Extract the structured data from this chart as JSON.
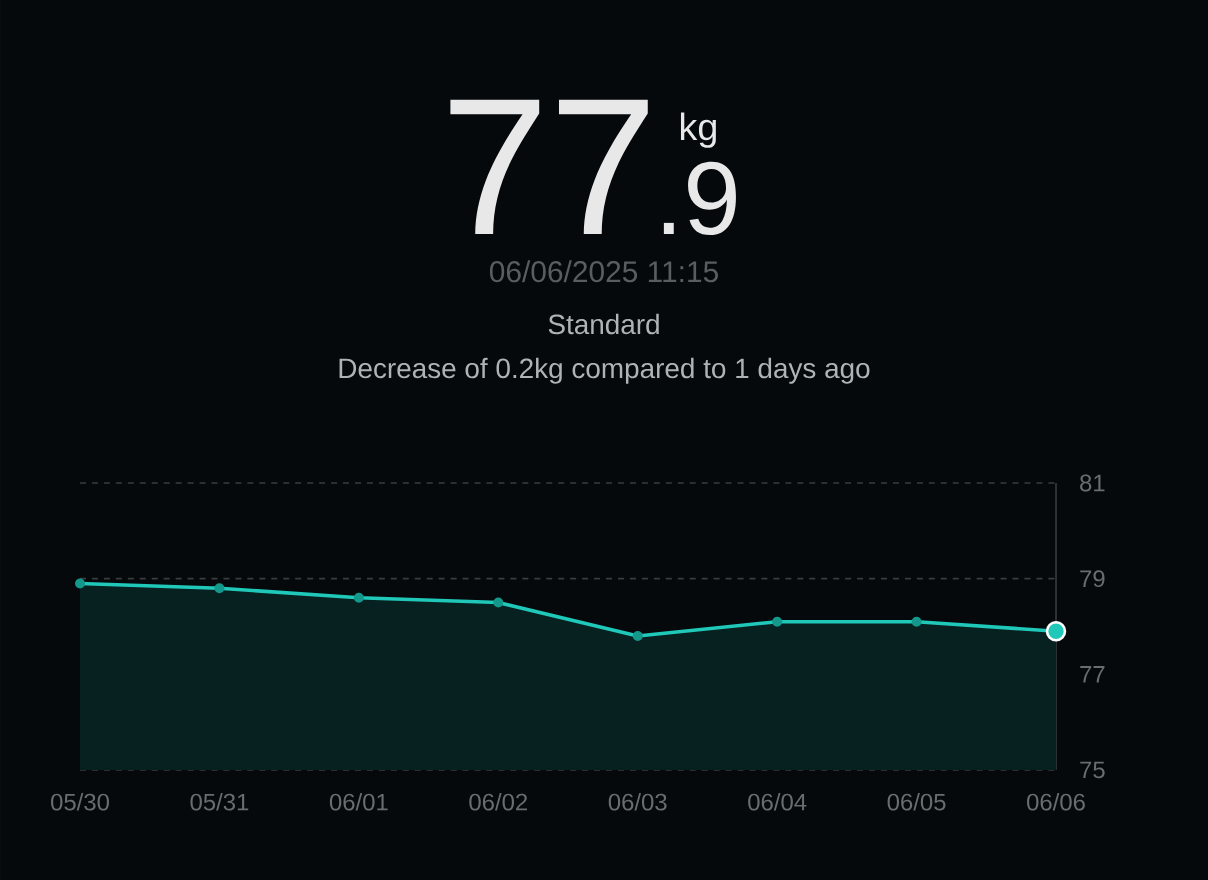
{
  "chart_data": {
    "type": "area",
    "title": "77",
    "annotations": [
      ".9",
      "kg",
      "06/06/2025 11:15",
      "Standard",
      "Decrease of 0.2kg compared to 1 days ago"
    ],
    "categories": [
      "05/30",
      "05/31",
      "06/01",
      "06/02",
      "06/03",
      "06/04",
      "06/05",
      "06/06"
    ],
    "values": [
      78.9,
      78.8,
      78.6,
      78.5,
      77.8,
      78.1,
      78.1,
      77.9
    ],
    "color": "#1fc8b8",
    "ylim": [
      75,
      81
    ],
    "yticks": [
      75,
      77,
      79,
      81
    ],
    "grid": "y",
    "marker": "circle"
  }
}
